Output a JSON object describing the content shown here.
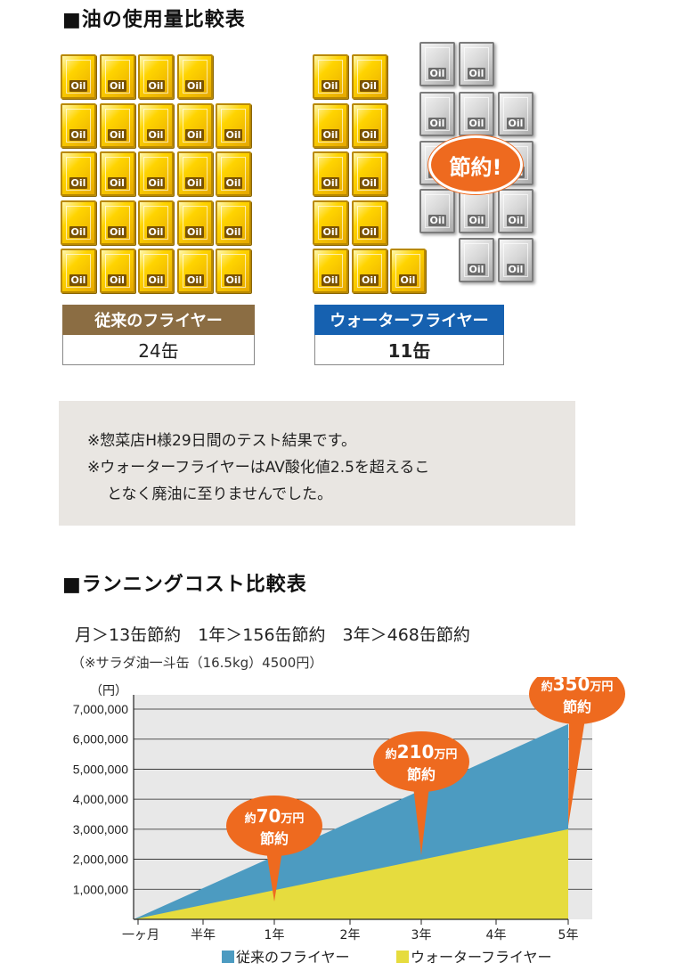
{
  "section1": {
    "title": "■油の使用量比較表",
    "can_label": "Oil",
    "savings_badge": "節約!",
    "conventional": {
      "name": "従来のフライヤー",
      "count_text": "24缶",
      "count": 24
    },
    "water": {
      "name": "ウォーターフライヤー",
      "count_text": "11缶",
      "count": 11,
      "saved_count": 13
    },
    "notes": [
      "※惣菜店H様29日間のテスト結果です。",
      "※ウォーターフライヤーはAV酸化値2.5を超えるこ",
      "となく廃油に至りませんでした。"
    ]
  },
  "section2": {
    "title": "■ランニングコスト比較表",
    "summary": "月＞13缶節約　1年＞156缶節約　3年＞468缶節約",
    "subnote": "（※サラダ油一斗缶（16.5kg）4500円）"
  },
  "colors": {
    "conventional": "#4c9bc1",
    "water": "#e6dc3e",
    "callout": "#ee6a1f",
    "conventional_label": "#8b6d43",
    "water_label": "#1661b0"
  },
  "chart_data": {
    "type": "area",
    "unit_label": "（円）",
    "y_ticks": [
      "1,000,000",
      "2,000,000",
      "3,000,000",
      "4,000,000",
      "5,000,000",
      "6,000,000",
      "7,000,000"
    ],
    "y_tick_values": [
      1000000,
      2000000,
      3000000,
      4000000,
      5000000,
      6000000,
      7000000
    ],
    "ylim": [
      0,
      7000000
    ],
    "x_ticks": [
      "一ヶ月",
      "半年",
      "1年",
      "2年",
      "3年",
      "4年",
      "5年"
    ],
    "x_tick_months": [
      1,
      6,
      12,
      24,
      36,
      48,
      60
    ],
    "x_months": [
      0,
      60
    ],
    "series": [
      {
        "name": "従来のフライヤー",
        "x_months": [
          0,
          60
        ],
        "values": [
          0,
          6500000
        ]
      },
      {
        "name": "ウォーターフライヤー",
        "x_months": [
          0,
          60
        ],
        "values": [
          0,
          3000000
        ]
      }
    ],
    "callouts": [
      {
        "prefix": "約",
        "amount": "70",
        "unit": "万円",
        "line2": "節約",
        "x_month": 12
      },
      {
        "prefix": "約",
        "amount": "210",
        "unit": "万円",
        "line2": "節約",
        "x_month": 36
      },
      {
        "prefix": "約",
        "amount": "350",
        "unit": "万円",
        "line2": "節約",
        "x_month": 60
      }
    ],
    "legend": [
      "従来のフライヤー",
      "ウォーターフライヤー"
    ]
  }
}
